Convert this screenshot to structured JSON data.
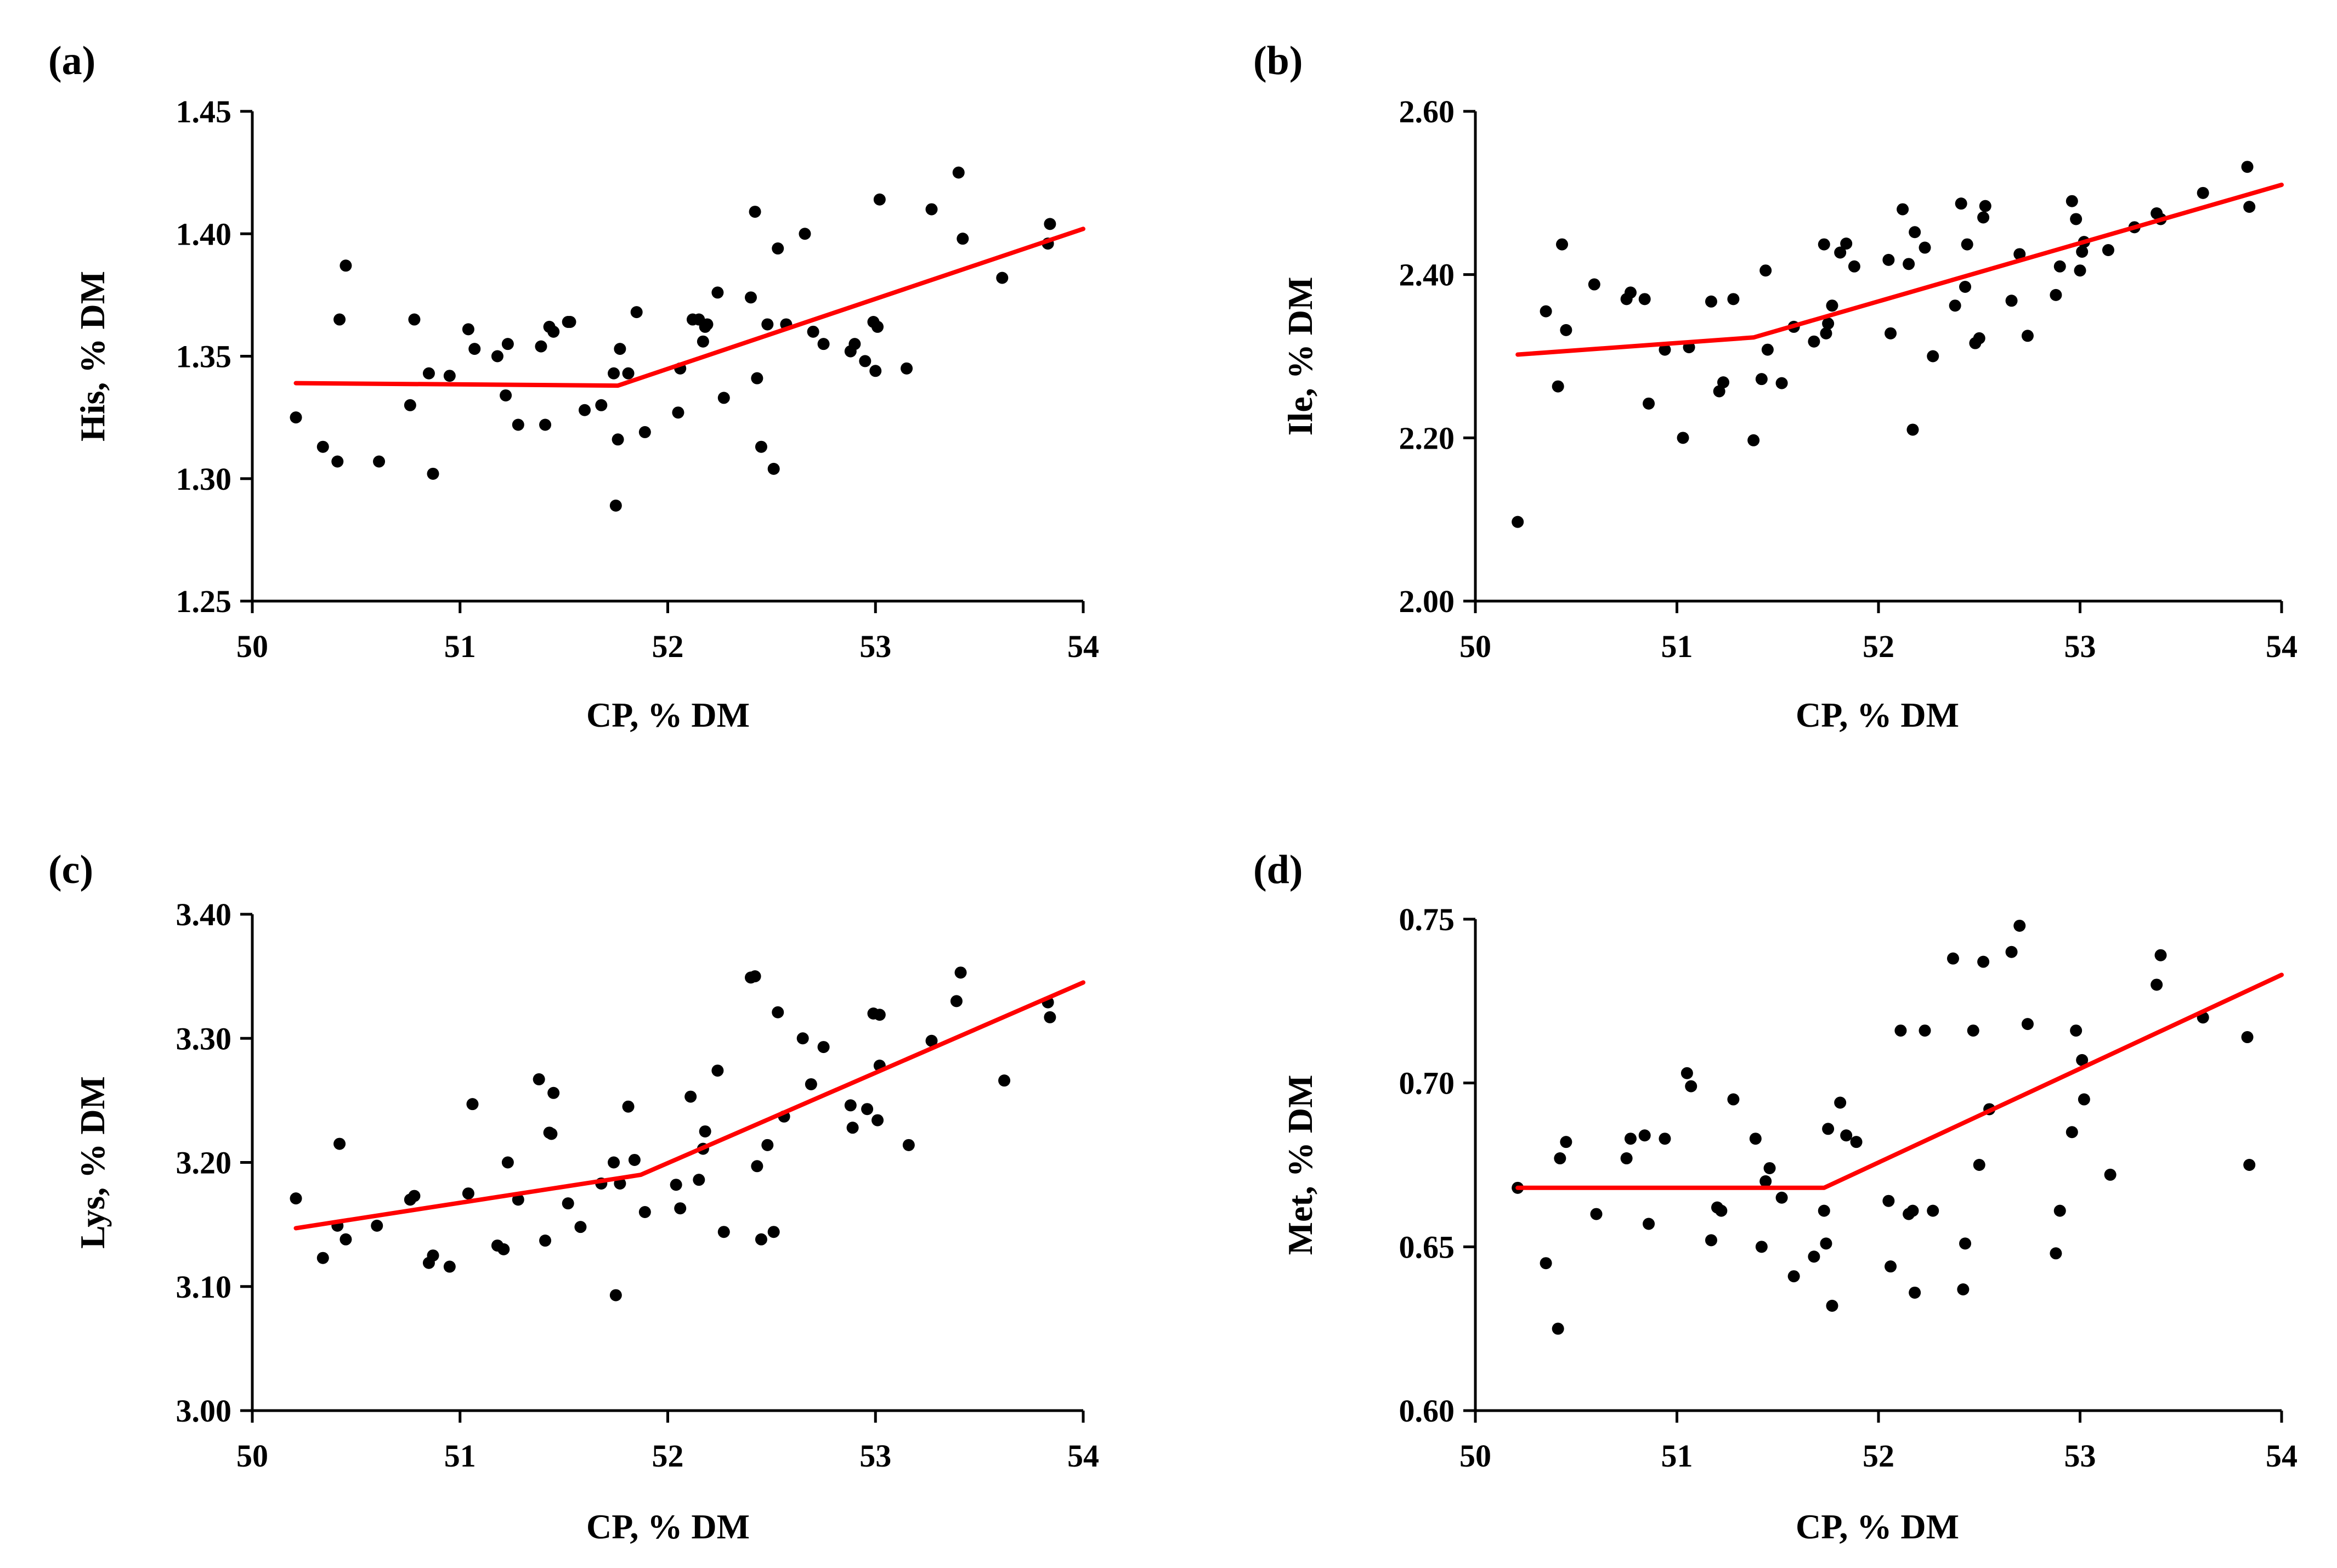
{
  "colors": {
    "points": "#000000",
    "fit_line": "#ff0000",
    "axes": "#000000"
  },
  "chart_data": [
    {
      "type": "scatter",
      "panel_label": "(a)",
      "xlabel": "CP, % DM",
      "ylabel": "His, % DM",
      "xlim": [
        50,
        54
      ],
      "ylim": [
        1.25,
        1.45
      ],
      "xticks": [
        50,
        51,
        52,
        53,
        54
      ],
      "xtick_labels": [
        "50",
        "51",
        "52",
        "53",
        "54"
      ],
      "yticks": [
        1.25,
        1.3,
        1.35,
        1.4,
        1.45
      ],
      "ytick_labels": [
        "1.25",
        "1.30",
        "1.35",
        "1.40",
        "1.45"
      ],
      "points": [
        [
          50.21,
          1.325
        ],
        [
          50.34,
          1.313
        ],
        [
          50.41,
          1.307
        ],
        [
          50.42,
          1.365
        ],
        [
          50.45,
          1.387
        ],
        [
          50.61,
          1.307
        ],
        [
          50.76,
          1.33
        ],
        [
          50.78,
          1.365
        ],
        [
          50.85,
          1.343
        ],
        [
          50.87,
          1.302
        ],
        [
          50.95,
          1.342
        ],
        [
          51.04,
          1.361
        ],
        [
          51.07,
          1.353
        ],
        [
          51.18,
          1.35
        ],
        [
          51.22,
          1.334
        ],
        [
          51.23,
          1.355
        ],
        [
          51.28,
          1.322
        ],
        [
          51.39,
          1.354
        ],
        [
          51.41,
          1.322
        ],
        [
          51.43,
          1.362
        ],
        [
          51.45,
          1.36
        ],
        [
          51.52,
          1.364
        ],
        [
          51.53,
          1.364
        ],
        [
          51.6,
          1.328
        ],
        [
          51.68,
          1.33
        ],
        [
          51.74,
          1.343
        ],
        [
          51.75,
          1.289
        ],
        [
          51.76,
          1.316
        ],
        [
          51.77,
          1.353
        ],
        [
          51.81,
          1.343
        ],
        [
          51.85,
          1.368
        ],
        [
          51.89,
          1.319
        ],
        [
          52.05,
          1.327
        ],
        [
          52.06,
          1.345
        ],
        [
          52.12,
          1.365
        ],
        [
          52.15,
          1.365
        ],
        [
          52.17,
          1.356
        ],
        [
          52.18,
          1.362
        ],
        [
          52.19,
          1.363
        ],
        [
          52.24,
          1.376
        ],
        [
          52.27,
          1.333
        ],
        [
          52.4,
          1.374
        ],
        [
          52.42,
          1.409
        ],
        [
          52.43,
          1.341
        ],
        [
          52.45,
          1.313
        ],
        [
          52.48,
          1.363
        ],
        [
          52.51,
          1.304
        ],
        [
          52.53,
          1.394
        ],
        [
          52.57,
          1.363
        ],
        [
          52.66,
          1.4
        ],
        [
          52.7,
          1.36
        ],
        [
          52.75,
          1.355
        ],
        [
          52.88,
          1.352
        ],
        [
          52.9,
          1.355
        ],
        [
          52.95,
          1.348
        ],
        [
          52.99,
          1.364
        ],
        [
          53.0,
          1.344
        ],
        [
          53.01,
          1.362
        ],
        [
          53.02,
          1.414
        ],
        [
          53.15,
          1.345
        ],
        [
          53.27,
          1.41
        ],
        [
          53.4,
          1.425
        ],
        [
          53.42,
          1.398
        ],
        [
          53.61,
          1.382
        ],
        [
          53.83,
          1.396
        ],
        [
          53.84,
          1.404
        ]
      ],
      "fit_line": [
        [
          50.21,
          1.339
        ],
        [
          51.76,
          1.338
        ],
        [
          54.0,
          1.402
        ]
      ]
    },
    {
      "type": "scatter",
      "panel_label": "(b)",
      "xlabel": "CP, % DM",
      "ylabel": "Ile, % DM",
      "xlim": [
        50,
        54
      ],
      "ylim": [
        2.0,
        2.6
      ],
      "xticks": [
        50,
        51,
        52,
        53,
        54
      ],
      "xtick_labels": [
        "50",
        "51",
        "52",
        "53",
        "54"
      ],
      "yticks": [
        2.0,
        2.2,
        2.4,
        2.6
      ],
      "ytick_labels": [
        "2.00",
        "2.20",
        "2.40",
        "2.60"
      ],
      "points": [
        [
          50.21,
          2.097
        ],
        [
          50.35,
          2.355
        ],
        [
          50.41,
          2.263
        ],
        [
          50.43,
          2.437
        ],
        [
          50.45,
          2.332
        ],
        [
          50.59,
          2.388
        ],
        [
          50.75,
          2.37
        ],
        [
          50.77,
          2.378
        ],
        [
          50.84,
          2.37
        ],
        [
          50.86,
          2.242
        ],
        [
          50.94,
          2.308
        ],
        [
          51.03,
          2.2
        ],
        [
          51.06,
          2.311
        ],
        [
          51.17,
          2.367
        ],
        [
          51.21,
          2.257
        ],
        [
          51.23,
          2.268
        ],
        [
          51.28,
          2.37
        ],
        [
          51.38,
          2.197
        ],
        [
          51.42,
          2.272
        ],
        [
          51.44,
          2.405
        ],
        [
          51.45,
          2.308
        ],
        [
          51.52,
          2.267
        ],
        [
          51.58,
          2.336
        ],
        [
          51.68,
          2.318
        ],
        [
          51.73,
          2.437
        ],
        [
          51.74,
          2.328
        ],
        [
          51.75,
          2.34
        ],
        [
          51.77,
          2.362
        ],
        [
          51.81,
          2.427
        ],
        [
          51.84,
          2.438
        ],
        [
          51.88,
          2.41
        ],
        [
          52.05,
          2.418
        ],
        [
          52.06,
          2.328
        ],
        [
          52.12,
          2.48
        ],
        [
          52.15,
          2.413
        ],
        [
          52.17,
          2.21
        ],
        [
          52.18,
          2.452
        ],
        [
          52.23,
          2.433
        ],
        [
          52.27,
          2.3
        ],
        [
          52.38,
          2.362
        ],
        [
          52.41,
          2.487
        ],
        [
          52.43,
          2.385
        ],
        [
          52.44,
          2.437
        ],
        [
          52.48,
          2.316
        ],
        [
          52.5,
          2.322
        ],
        [
          52.52,
          2.47
        ],
        [
          52.53,
          2.484
        ],
        [
          52.66,
          2.368
        ],
        [
          52.7,
          2.425
        ],
        [
          52.74,
          2.325
        ],
        [
          52.88,
          2.375
        ],
        [
          52.9,
          2.41
        ],
        [
          52.96,
          2.49
        ],
        [
          52.98,
          2.468
        ],
        [
          53.0,
          2.405
        ],
        [
          53.01,
          2.428
        ],
        [
          53.02,
          2.44
        ],
        [
          53.14,
          2.43
        ],
        [
          53.27,
          2.458
        ],
        [
          53.38,
          2.475
        ],
        [
          53.4,
          2.468
        ],
        [
          53.61,
          2.5
        ],
        [
          53.83,
          2.532
        ],
        [
          53.84,
          2.483
        ]
      ],
      "fit_line": [
        [
          50.21,
          2.302
        ],
        [
          51.38,
          2.323
        ],
        [
          54.0,
          2.51
        ]
      ]
    },
    {
      "type": "scatter",
      "panel_label": "(c)",
      "xlabel": "CP, % DM",
      "ylabel": "Lys, % DM",
      "xlim": [
        50,
        54
      ],
      "ylim": [
        3.0,
        3.4
      ],
      "xticks": [
        50,
        51,
        52,
        53,
        54
      ],
      "xtick_labels": [
        "50",
        "51",
        "52",
        "53",
        "54"
      ],
      "yticks": [
        3.0,
        3.1,
        3.2,
        3.3,
        3.4
      ],
      "ytick_labels": [
        "3.00",
        "3.10",
        "3.20",
        "3.30",
        "3.40"
      ],
      "points": [
        [
          50.21,
          3.171
        ],
        [
          50.34,
          3.123
        ],
        [
          50.41,
          3.149
        ],
        [
          50.42,
          3.215
        ],
        [
          50.45,
          3.138
        ],
        [
          50.6,
          3.149
        ],
        [
          50.76,
          3.17
        ],
        [
          50.78,
          3.173
        ],
        [
          50.85,
          3.119
        ],
        [
          50.87,
          3.125
        ],
        [
          50.95,
          3.116
        ],
        [
          51.04,
          3.175
        ],
        [
          51.06,
          3.247
        ],
        [
          51.18,
          3.133
        ],
        [
          51.21,
          3.13
        ],
        [
          51.23,
          3.2
        ],
        [
          51.28,
          3.17
        ],
        [
          51.38,
          3.267
        ],
        [
          51.41,
          3.137
        ],
        [
          51.43,
          3.224
        ],
        [
          51.44,
          3.223
        ],
        [
          51.45,
          3.256
        ],
        [
          51.52,
          3.167
        ],
        [
          51.58,
          3.148
        ],
        [
          51.68,
          3.183
        ],
        [
          51.74,
          3.2
        ],
        [
          51.75,
          3.093
        ],
        [
          51.77,
          3.183
        ],
        [
          51.81,
          3.245
        ],
        [
          51.84,
          3.202
        ],
        [
          51.89,
          3.16
        ],
        [
          52.04,
          3.182
        ],
        [
          52.06,
          3.163
        ],
        [
          52.11,
          3.253
        ],
        [
          52.15,
          3.186
        ],
        [
          52.17,
          3.211
        ],
        [
          52.18,
          3.225
        ],
        [
          52.24,
          3.274
        ],
        [
          52.27,
          3.144
        ],
        [
          52.4,
          3.349
        ],
        [
          52.42,
          3.35
        ],
        [
          52.43,
          3.197
        ],
        [
          52.45,
          3.138
        ],
        [
          52.48,
          3.214
        ],
        [
          52.51,
          3.144
        ],
        [
          52.53,
          3.321
        ],
        [
          52.56,
          3.237
        ],
        [
          52.65,
          3.3
        ],
        [
          52.69,
          3.263
        ],
        [
          52.75,
          3.293
        ],
        [
          52.88,
          3.246
        ],
        [
          52.89,
          3.228
        ],
        [
          52.96,
          3.243
        ],
        [
          52.99,
          3.32
        ],
        [
          53.01,
          3.234
        ],
        [
          53.02,
          3.319
        ],
        [
          53.02,
          3.278
        ],
        [
          53.16,
          3.214
        ],
        [
          53.27,
          3.298
        ],
        [
          53.39,
          3.33
        ],
        [
          53.41,
          3.353
        ],
        [
          53.62,
          3.266
        ],
        [
          53.83,
          3.329
        ],
        [
          53.84,
          3.317
        ]
      ],
      "fit_line": [
        [
          50.21,
          3.147
        ],
        [
          51.87,
          3.19
        ],
        [
          54.0,
          3.345
        ]
      ]
    },
    {
      "type": "scatter",
      "panel_label": "(d)",
      "xlabel": "CP, % DM",
      "ylabel": "Met, % DM",
      "xlim": [
        50,
        54
      ],
      "ylim": [
        0.6,
        0.75
      ],
      "xticks": [
        50,
        51,
        52,
        53,
        54
      ],
      "xtick_labels": [
        "50",
        "51",
        "52",
        "53",
        "54"
      ],
      "yticks": [
        0.6,
        0.65,
        0.7,
        0.75
      ],
      "ytick_labels": [
        "0.60",
        "0.65",
        "0.70",
        "0.75"
      ],
      "points": [
        [
          50.21,
          0.668
        ],
        [
          50.35,
          0.645
        ],
        [
          50.41,
          0.625
        ],
        [
          50.42,
          0.677
        ],
        [
          50.45,
          0.682
        ],
        [
          50.6,
          0.66
        ],
        [
          50.75,
          0.677
        ],
        [
          50.77,
          0.683
        ],
        [
          50.84,
          0.684
        ],
        [
          50.86,
          0.657
        ],
        [
          50.94,
          0.683
        ],
        [
          51.05,
          0.703
        ],
        [
          51.07,
          0.699
        ],
        [
          51.17,
          0.652
        ],
        [
          51.2,
          0.662
        ],
        [
          51.22,
          0.661
        ],
        [
          51.28,
          0.695
        ],
        [
          51.39,
          0.683
        ],
        [
          51.42,
          0.65
        ],
        [
          51.44,
          0.67
        ],
        [
          51.46,
          0.674
        ],
        [
          51.52,
          0.665
        ],
        [
          51.58,
          0.641
        ],
        [
          51.68,
          0.647
        ],
        [
          51.73,
          0.661
        ],
        [
          51.74,
          0.651
        ],
        [
          51.75,
          0.686
        ],
        [
          51.77,
          0.632
        ],
        [
          51.81,
          0.694
        ],
        [
          51.84,
          0.684
        ],
        [
          51.89,
          0.682
        ],
        [
          52.05,
          0.664
        ],
        [
          52.06,
          0.644
        ],
        [
          52.11,
          0.716
        ],
        [
          52.15,
          0.66
        ],
        [
          52.17,
          0.661
        ],
        [
          52.18,
          0.636
        ],
        [
          52.23,
          0.716
        ],
        [
          52.27,
          0.661
        ],
        [
          52.37,
          0.738
        ],
        [
          52.42,
          0.637
        ],
        [
          52.43,
          0.651
        ],
        [
          52.47,
          0.716
        ],
        [
          52.5,
          0.675
        ],
        [
          52.52,
          0.737
        ],
        [
          52.55,
          0.692
        ],
        [
          52.66,
          0.74
        ],
        [
          52.7,
          0.748
        ],
        [
          52.74,
          0.718
        ],
        [
          52.88,
          0.648
        ],
        [
          52.9,
          0.661
        ],
        [
          52.96,
          0.685
        ],
        [
          52.98,
          0.716
        ],
        [
          53.01,
          0.707
        ],
        [
          53.02,
          0.695
        ],
        [
          53.15,
          0.672
        ],
        [
          53.38,
          0.73
        ],
        [
          53.4,
          0.739
        ],
        [
          53.61,
          0.72
        ],
        [
          53.83,
          0.714
        ],
        [
          53.84,
          0.675
        ]
      ],
      "fit_line": [
        [
          50.21,
          0.668
        ],
        [
          51.73,
          0.668
        ],
        [
          54.0,
          0.733
        ]
      ]
    }
  ]
}
